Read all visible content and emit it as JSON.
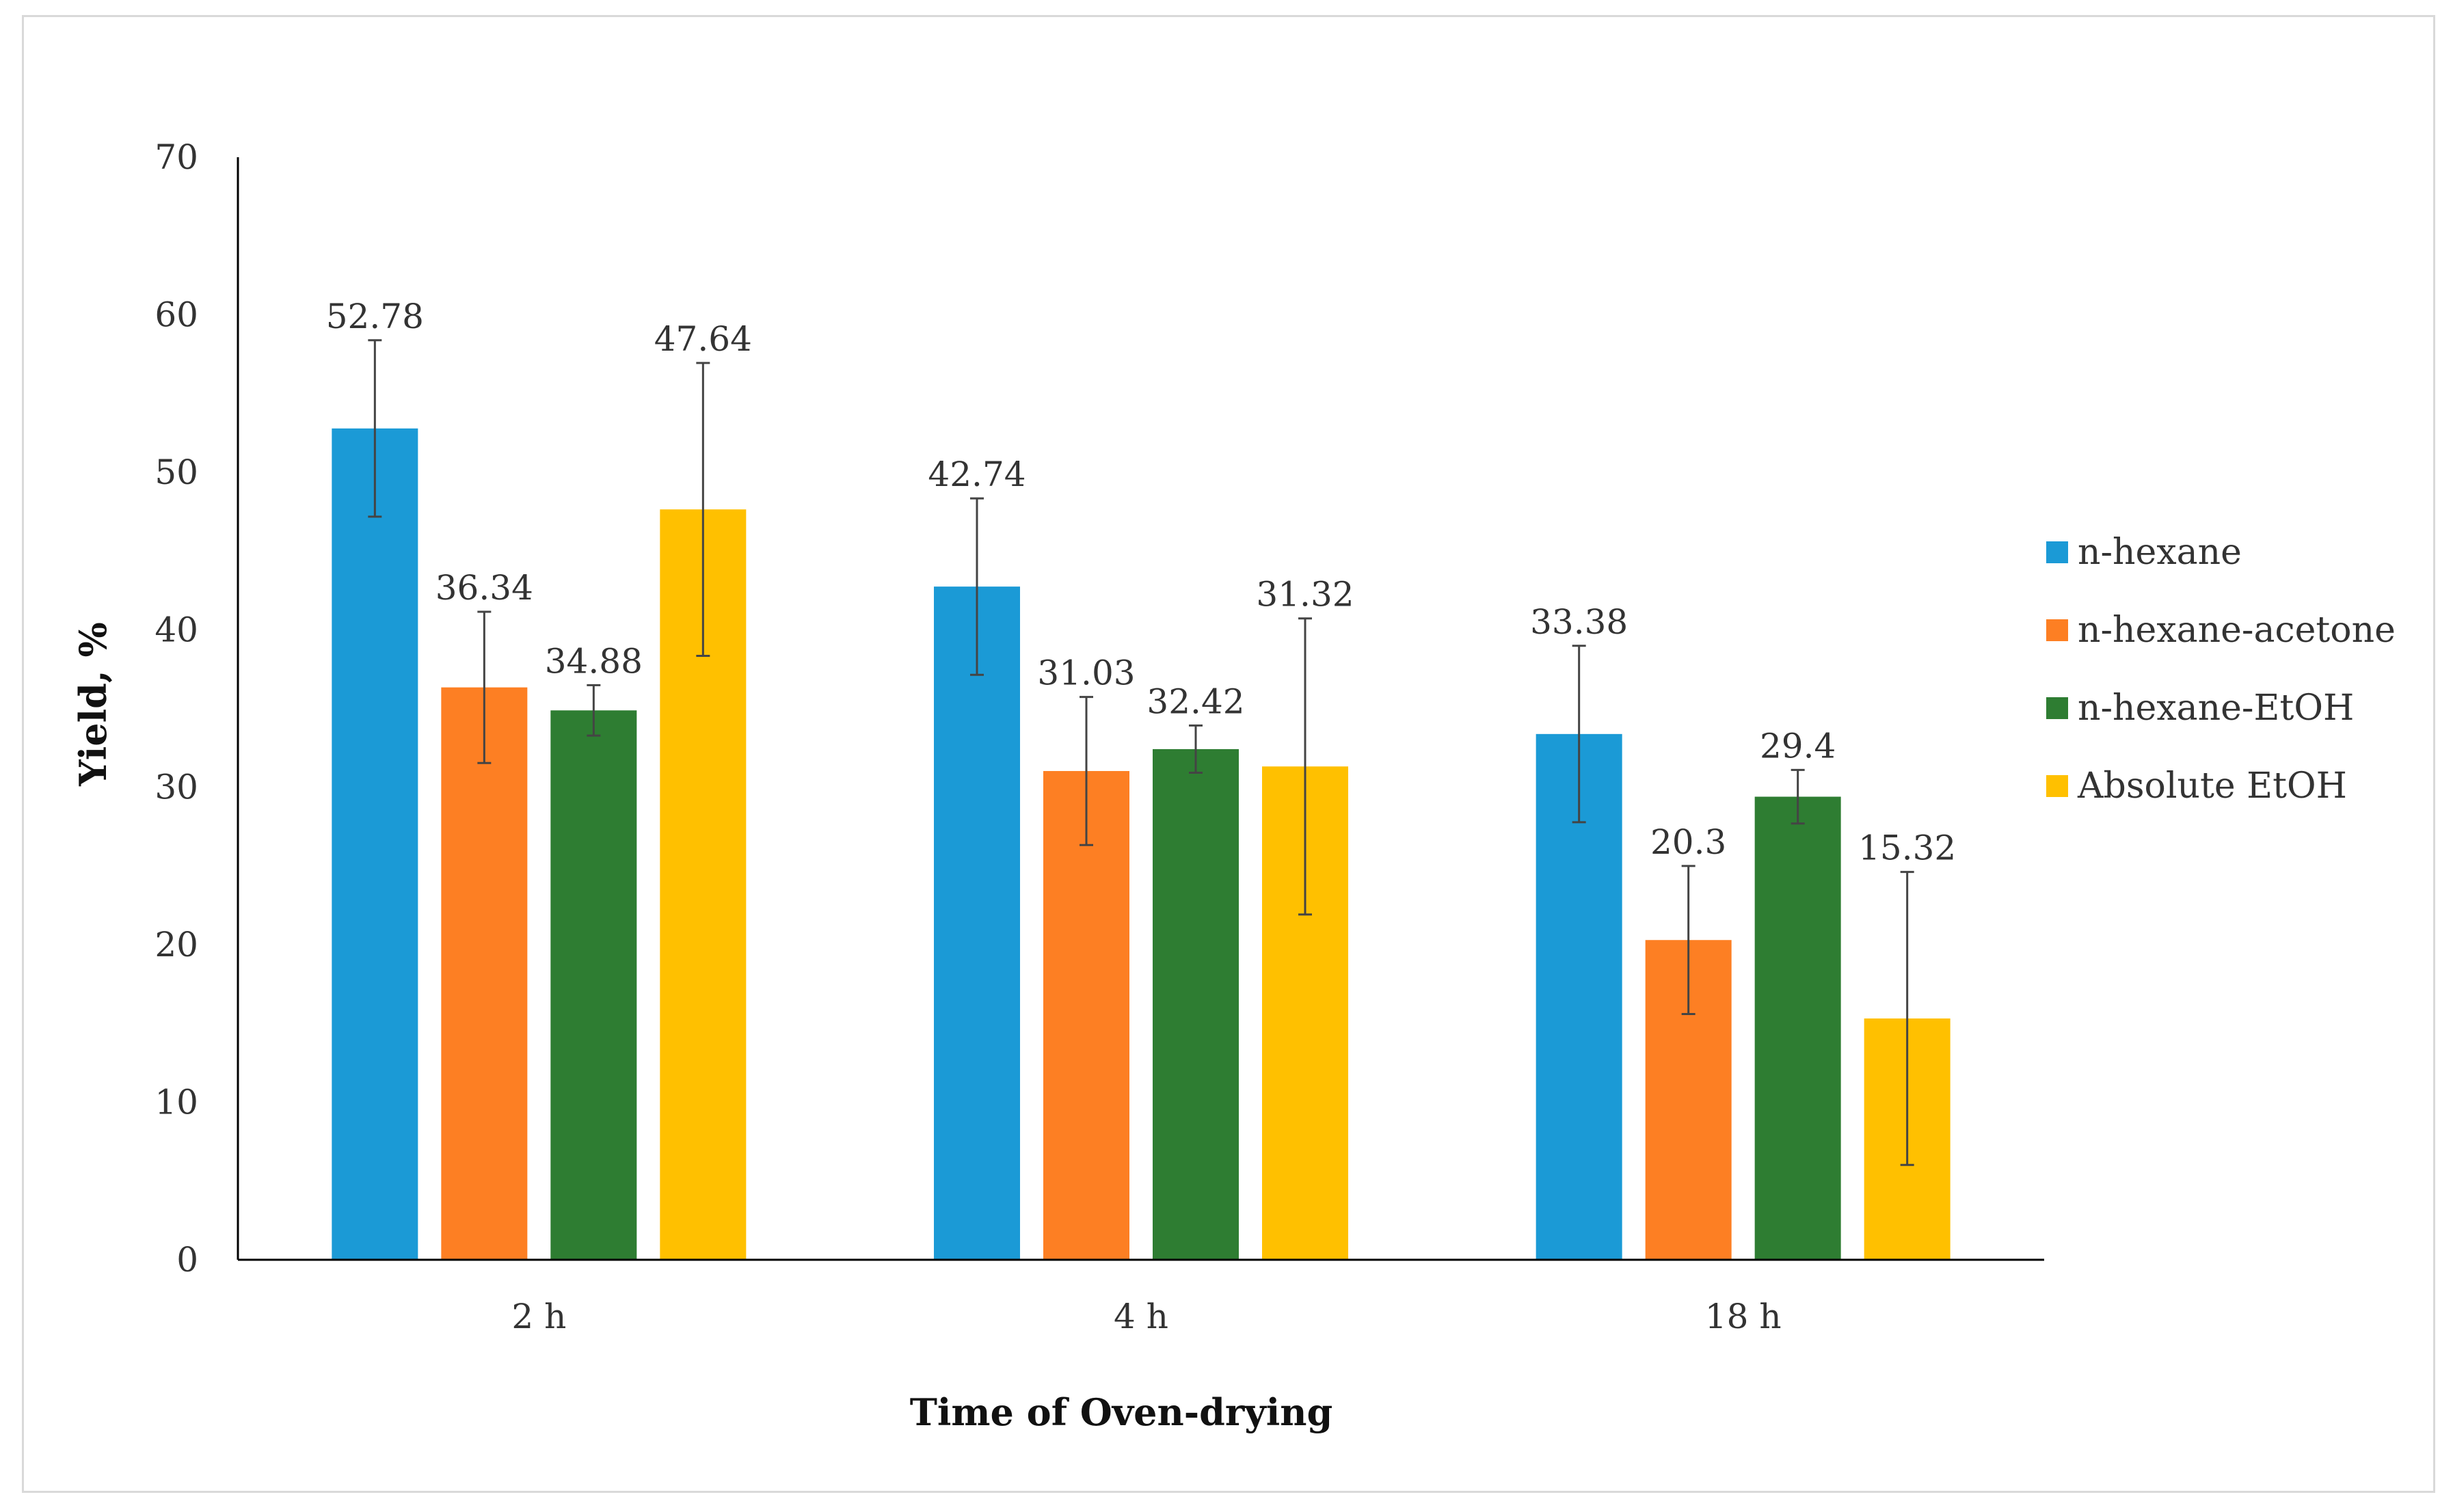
{
  "chart_data": {
    "type": "bar",
    "title": "",
    "xlabel": "Time of Oven-drying",
    "ylabel": "Yield, %",
    "ylim": [
      0,
      70
    ],
    "yticks": [
      0,
      10,
      20,
      30,
      40,
      50,
      60,
      70
    ],
    "grid": false,
    "legend_position": "right",
    "categories": [
      "2 h",
      "4 h",
      "18 h"
    ],
    "series": [
      {
        "name": "n-hexane",
        "color": "#1b9ad6",
        "values": [
          52.78,
          42.74,
          33.38
        ],
        "labels": [
          "52.78",
          "42.74",
          "33.38"
        ],
        "error": [
          5.6,
          5.6,
          5.6
        ]
      },
      {
        "name": "n-hexane-acetone",
        "color": "#fd7f23",
        "values": [
          36.34,
          31.03,
          20.3
        ],
        "labels": [
          "36.34",
          "31.03",
          "20.3"
        ],
        "error": [
          4.8,
          4.7,
          4.7
        ]
      },
      {
        "name": "n-hexane-EtOH",
        "color": "#2e7d32",
        "values": [
          34.88,
          32.42,
          29.4
        ],
        "labels": [
          "34.88",
          "32.42",
          "29.4"
        ],
        "error": [
          1.6,
          1.5,
          1.7
        ]
      },
      {
        "name": "Absolute EtOH",
        "color": "#ffc000",
        "values": [
          47.64,
          31.32,
          15.32
        ],
        "labels": [
          "47.64",
          "31.32",
          "15.32"
        ],
        "error": [
          9.3,
          9.4,
          9.3
        ]
      }
    ]
  }
}
